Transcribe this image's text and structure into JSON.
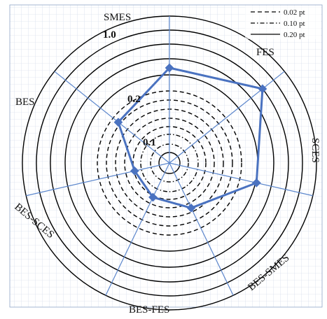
{
  "chart_data": {
    "type": "radar",
    "axes": [
      "SMES",
      "FES",
      "SCES",
      "BES-SMES",
      "BES-FES",
      "BES-SCES",
      "BES"
    ],
    "ring_labels": [
      "0.1",
      "0.2",
      "1.0"
    ],
    "legend": [
      {
        "label": "0.02 pt",
        "style": "dashed"
      },
      {
        "label": "0.10 pt",
        "style": "dash-dot"
      },
      {
        "label": "0.20 pt",
        "style": "solid"
      }
    ],
    "series": [
      {
        "values": [
          0.8,
          1.0,
          0.75,
          0.42,
          0.32,
          0.3,
          0.55
        ]
      }
    ],
    "grid": true,
    "legend_position": "top-right",
    "colors": {
      "series": "#4a72c0",
      "axes": "#5b86cc",
      "rings": "#000000",
      "grid": "#c7d3e6"
    }
  }
}
